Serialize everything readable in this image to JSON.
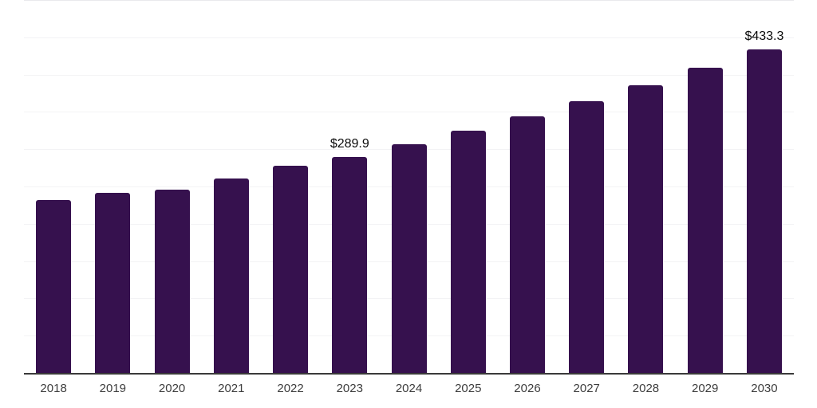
{
  "chart": {
    "bar_color": "#36114E",
    "axis_color": "#3a3a3a",
    "gridline_color": "#f3f3f5",
    "top_gridline_color": "#e9e9ec",
    "tick_label_color": "#3d3d3d",
    "value_label_color": "#0a0a0a"
  },
  "chart_data": {
    "type": "bar",
    "title": "",
    "xlabel": "",
    "ylabel": "",
    "categories": [
      "2018",
      "2019",
      "2020",
      "2021",
      "2022",
      "2023",
      "2024",
      "2025",
      "2026",
      "2027",
      "2028",
      "2029",
      "2030"
    ],
    "values": [
      232.0,
      242.0,
      246.1,
      260.5,
      277.4,
      289.9,
      307.0,
      325.1,
      344.3,
      364.6,
      386.1,
      408.9,
      433.3
    ],
    "value_labels": [
      null,
      null,
      null,
      null,
      null,
      "$289.9",
      null,
      null,
      null,
      null,
      null,
      null,
      "$433.3"
    ],
    "ylim": [
      0,
      500
    ],
    "gridline_step": 50,
    "grid": "horizontal",
    "y_tick_labels": "none",
    "legend": "none",
    "currency_prefix": "$"
  }
}
